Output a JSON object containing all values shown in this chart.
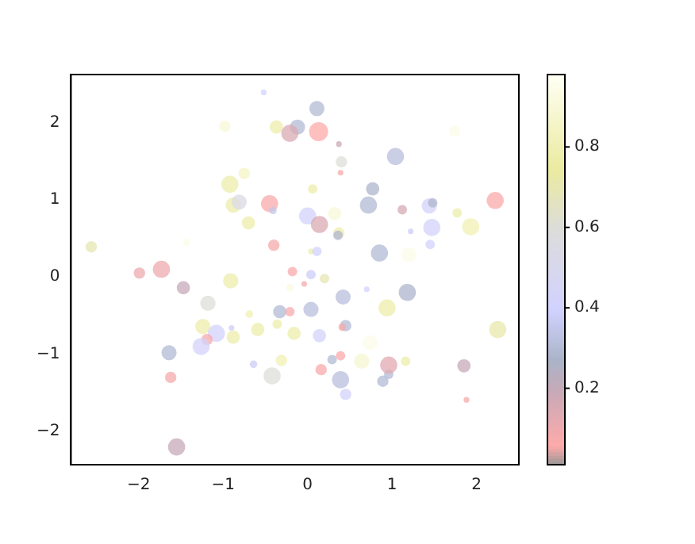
{
  "chart_data": {
    "type": "bubble",
    "xlim": [
      -2.8,
      2.5
    ],
    "ylim": [
      -2.43,
      2.62
    ],
    "xticks": [
      -2,
      -1,
      0,
      1,
      2
    ],
    "yticks": [
      -2,
      -1,
      0,
      1,
      2
    ],
    "grid": false,
    "legend": false,
    "clim": [
      0.01,
      0.98
    ],
    "cticks": [
      0.2,
      0.4,
      0.6,
      0.8
    ],
    "x": [
      -0.52,
      -0.98,
      -0.37,
      -0.12,
      -0.21,
      -0.75,
      -0.92,
      -0.88,
      -0.81,
      -0.45,
      -0.41,
      -0.7,
      -0.4,
      -2.56,
      -1.43,
      -1.99,
      -1.73,
      0.11,
      0.13,
      0.37,
      0.4,
      0.39,
      1.04,
      1.74,
      0.06,
      0.77,
      0.72,
      1.12,
      1.44,
      1.48,
      1.77,
      2.22,
      1.93,
      1.47,
      1.22,
      1.45,
      0.85,
      1.2,
      0.0,
      0.32,
      0.14,
      0.37,
      0.36,
      0.04,
      0.11,
      0.04,
      -0.18,
      0.2,
      -0.04,
      0.42,
      0.7,
      1.18,
      0.94,
      0.04,
      -0.21,
      -0.16,
      0.14,
      0.45,
      0.41,
      0.74,
      2.25,
      0.29,
      0.39,
      0.16,
      0.64,
      0.96,
      0.96,
      1.16,
      0.39,
      0.89,
      0.45,
      1.85,
      1.88,
      -1.47,
      -0.91,
      -1.18,
      -0.21,
      -0.33,
      -0.69,
      -0.9,
      -1.24,
      -1.08,
      -1.19,
      -1.26,
      -0.88,
      -0.59,
      -0.36,
      -1.64,
      -1.62,
      -0.64,
      -0.31,
      -0.42,
      -1.55
    ],
    "values": [
      2.39,
      1.95,
      1.94,
      1.94,
      1.86,
      1.34,
      1.2,
      0.93,
      0.97,
      0.95,
      0.86,
      0.7,
      0.41,
      0.39,
      0.45,
      0.05,
      0.1,
      2.18,
      1.88,
      1.72,
      1.49,
      1.35,
      1.56,
      1.89,
      1.14,
      1.14,
      0.93,
      0.87,
      0.92,
      0.96,
      0.83,
      0.99,
      0.65,
      0.64,
      0.59,
      0.42,
      0.31,
      0.29,
      0.79,
      0.82,
      0.68,
      0.57,
      0.54,
      0.33,
      0.33,
      0.03,
      0.07,
      -0.02,
      -0.09,
      -0.26,
      -0.16,
      -0.2,
      -0.4,
      -0.42,
      -0.45,
      -0.73,
      -0.76,
      -0.63,
      -0.65,
      -0.85,
      -0.68,
      -1.07,
      -1.02,
      -1.2,
      -1.09,
      -1.26,
      -1.14,
      -1.09,
      -1.33,
      -1.35,
      -1.52,
      -1.15,
      -1.59,
      -0.14,
      -0.05,
      -0.34,
      -0.14,
      -0.45,
      -0.48,
      -0.66,
      -0.64,
      -0.73,
      -0.81,
      -0.9,
      -0.78,
      -0.68,
      -0.61,
      -0.98,
      -1.3,
      -1.13,
      -1.08,
      -1.28,
      -2.2
    ],
    "sizes": [
      0.09,
      0.36,
      0.49,
      0.64,
      0.81,
      0.36,
      0.81,
      0.64,
      0.64,
      0.81,
      0.16,
      0.49,
      0.36,
      0.36,
      0.16,
      0.36,
      0.81,
      0.64,
      1,
      0.09,
      0.36,
      0.09,
      0.81,
      0.36,
      0.25,
      0.49,
      0.81,
      0.25,
      0.64,
      0.25,
      0.25,
      0.81,
      0.81,
      0.81,
      0.09,
      0.25,
      0.81,
      0.64,
      0.81,
      0.49,
      0.81,
      0.36,
      0.25,
      0.09,
      0.25,
      0.25,
      0.25,
      0.25,
      0.09,
      0.64,
      0.09,
      0.81,
      0.81,
      0.64,
      0.25,
      0.49,
      0.49,
      0.36,
      0.16,
      0.64,
      0.81,
      0.25,
      0.25,
      0.36,
      0.64,
      0.25,
      0.81,
      0.25,
      0.81,
      0.36,
      0.36,
      0.49,
      0.09,
      0.49,
      0.64,
      0.64,
      0.16,
      0.49,
      0.16,
      0.09,
      0.64,
      0.81,
      0.36,
      0.81,
      0.49,
      0.49,
      0.25,
      0.64,
      0.36,
      0.16,
      0.36,
      0.81,
      0.81
    ],
    "cvalues": [
      0.4,
      0.9,
      0.78,
      0.3,
      0.15,
      0.85,
      0.78,
      0.78,
      0.55,
      0.07,
      0.35,
      0.78,
      0.08,
      0.7,
      0.95,
      0.1,
      0.1,
      0.3,
      0.06,
      0.2,
      0.6,
      0.08,
      0.32,
      0.95,
      0.78,
      0.28,
      0.3,
      0.16,
      0.42,
      0.28,
      0.78,
      0.07,
      0.8,
      0.42,
      0.38,
      0.42,
      0.3,
      0.95,
      0.42,
      0.9,
      0.15,
      0.78,
      0.28,
      0.78,
      0.4,
      0.38,
      0.07,
      0.7,
      0.08,
      0.32,
      0.4,
      0.28,
      0.78,
      0.32,
      0.07,
      0.78,
      0.42,
      0.3,
      0.08,
      0.95,
      0.72,
      0.3,
      0.07,
      0.07,
      0.88,
      0.3,
      0.13,
      0.78,
      0.32,
      0.3,
      0.42,
      0.2,
      0.08,
      0.2,
      0.78,
      0.6,
      0.92,
      0.3,
      0.8,
      0.38,
      0.78,
      0.42,
      0.08,
      0.42,
      0.78,
      0.78,
      0.78,
      0.3,
      0.08,
      0.38,
      0.8,
      0.6,
      0.2
    ]
  }
}
